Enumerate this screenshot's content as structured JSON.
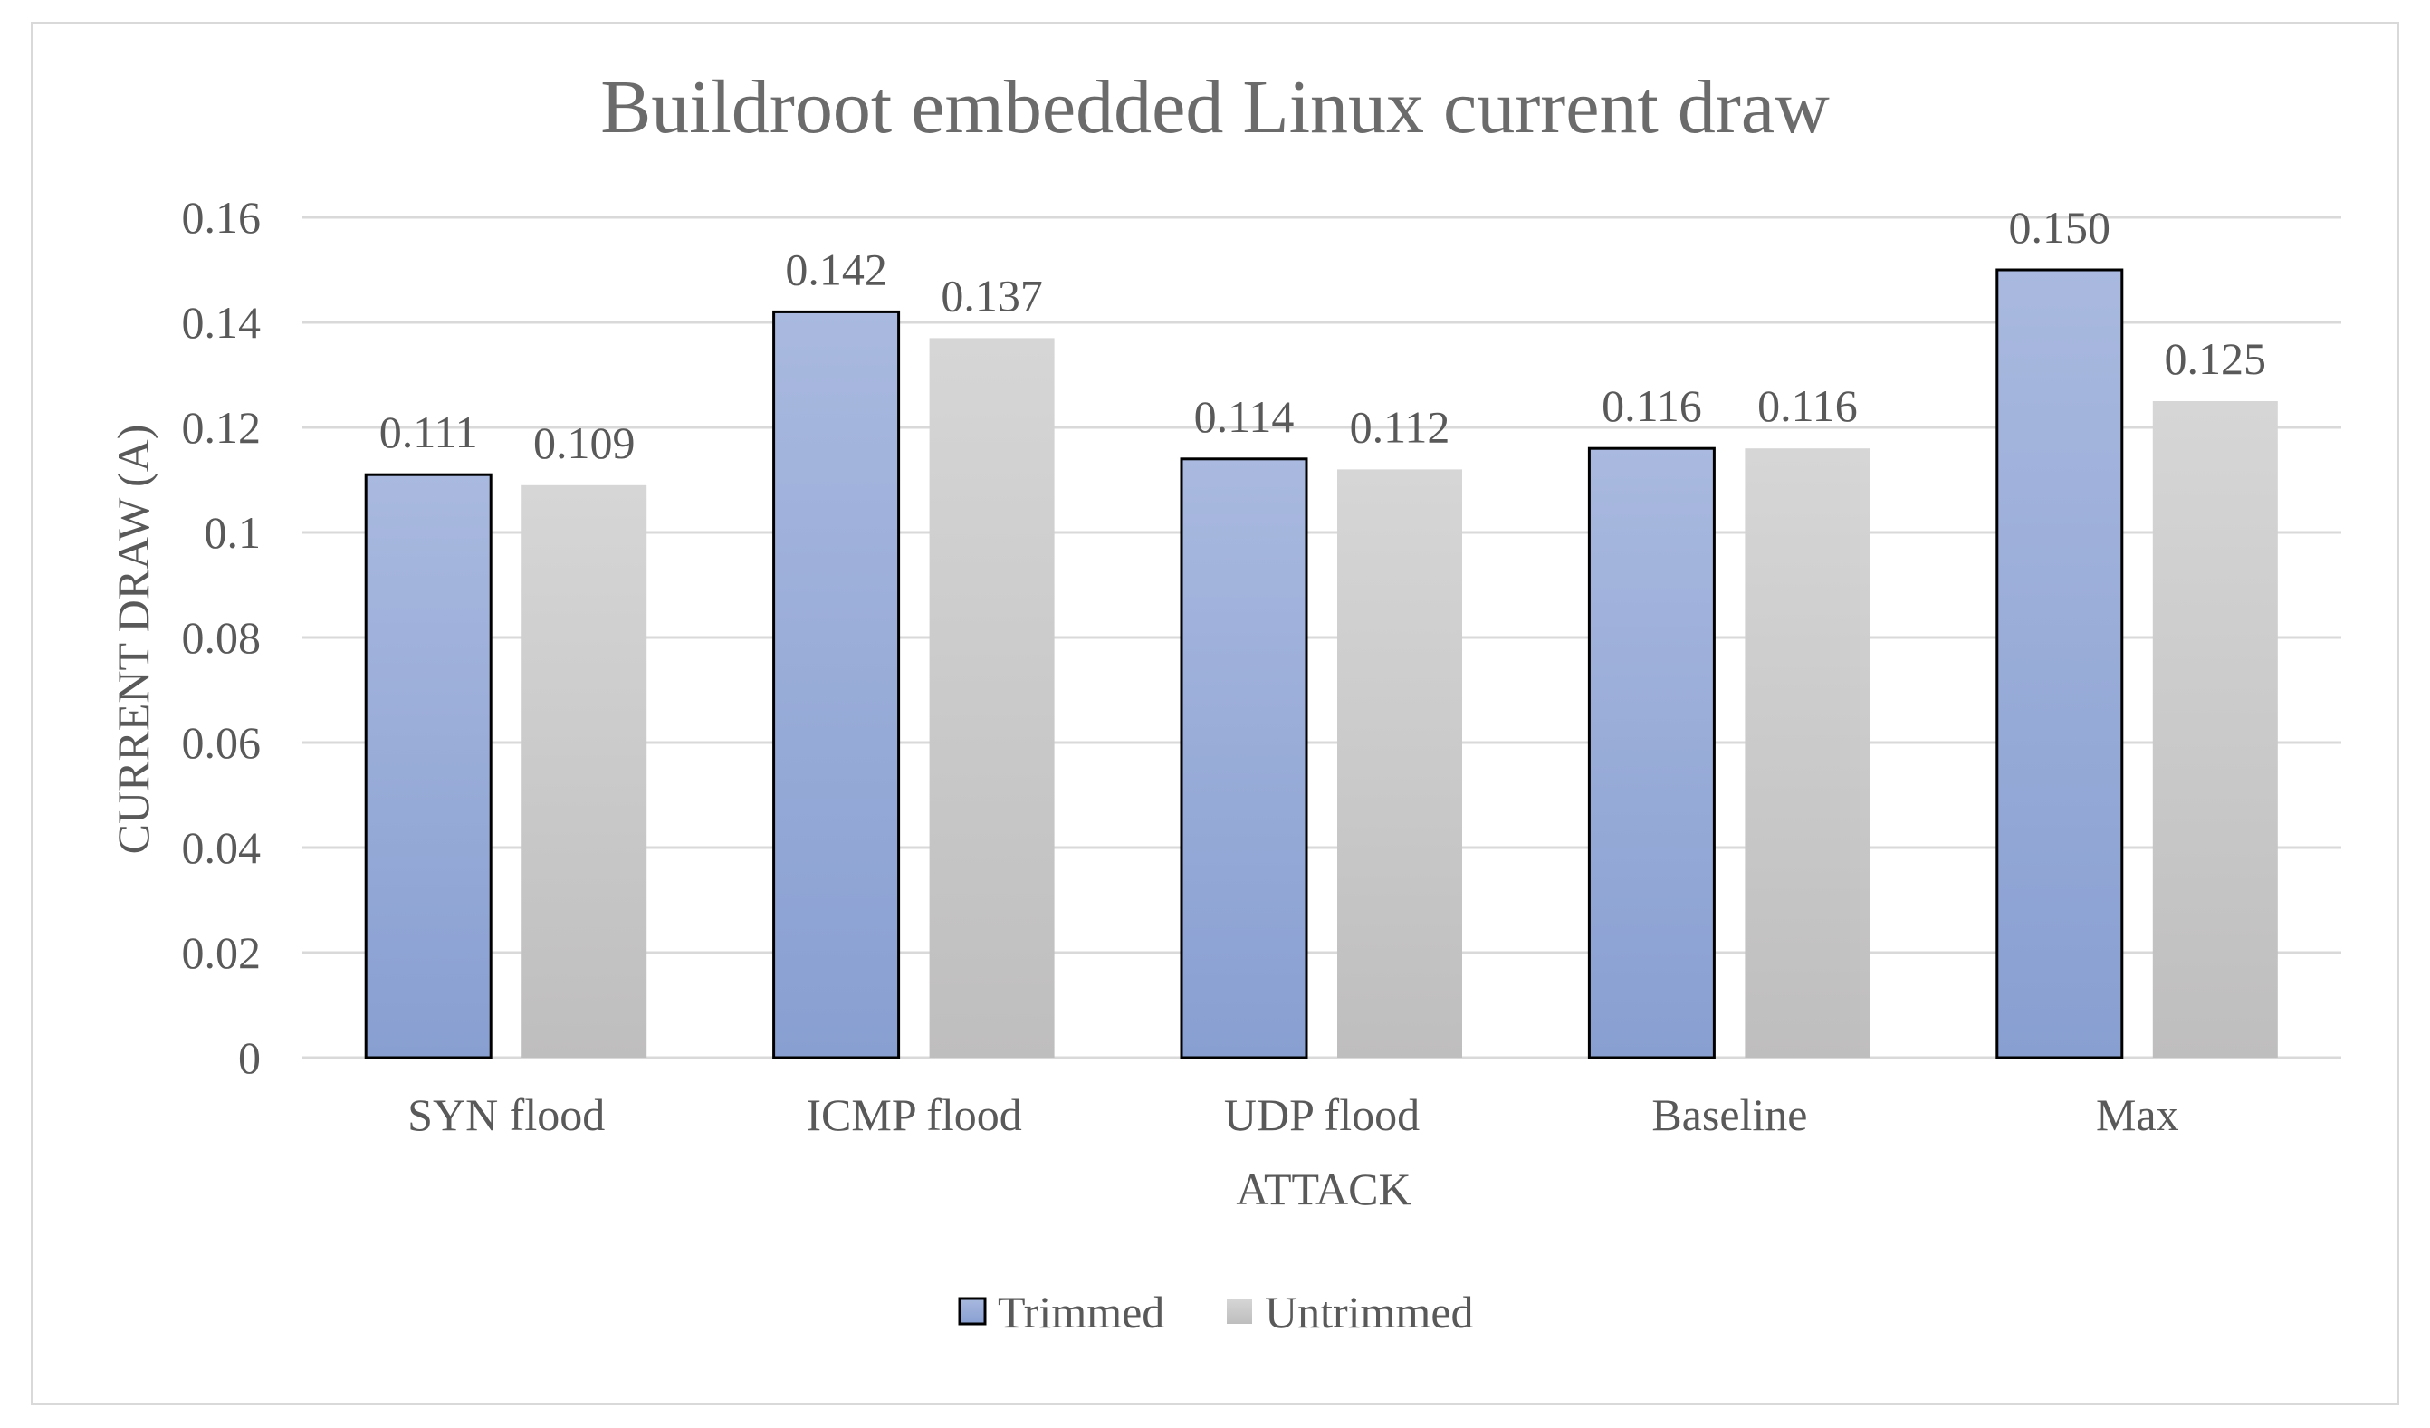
{
  "chart_data": {
    "type": "bar",
    "title": "Buildroot embedded Linux current draw",
    "xlabel": "ATTACK",
    "ylabel": "CURRENT DRAW (A)",
    "categories": [
      "SYN flood",
      "ICMP flood",
      "UDP flood",
      "Baseline",
      "Max"
    ],
    "series": [
      {
        "name": "Trimmed",
        "values": [
          0.111,
          0.142,
          0.114,
          0.116,
          0.15
        ],
        "labels": [
          "0.111",
          "0.142",
          "0.114",
          "0.116",
          "0.150"
        ],
        "color_top": "#a9b9df",
        "color_bottom": "#889fd1",
        "outline": "#000000"
      },
      {
        "name": "Untrimmed",
        "values": [
          0.109,
          0.137,
          0.112,
          0.116,
          0.125
        ],
        "labels": [
          "0.109",
          "0.137",
          "0.112",
          "0.116",
          "0.125"
        ],
        "color_top": "#d6d6d6",
        "color_bottom": "#bfbebe",
        "outline": "none"
      }
    ],
    "ylim": [
      0,
      0.16
    ],
    "yticks": [
      "0",
      "0.02",
      "0.04",
      "0.06",
      "0.08",
      "0.1",
      "0.12",
      "0.14",
      "0.16"
    ],
    "yticks_values": [
      0,
      0.02,
      0.04,
      0.06,
      0.08,
      0.1,
      0.12,
      0.14,
      0.16
    ],
    "grid": true,
    "legend_position": "bottom"
  }
}
